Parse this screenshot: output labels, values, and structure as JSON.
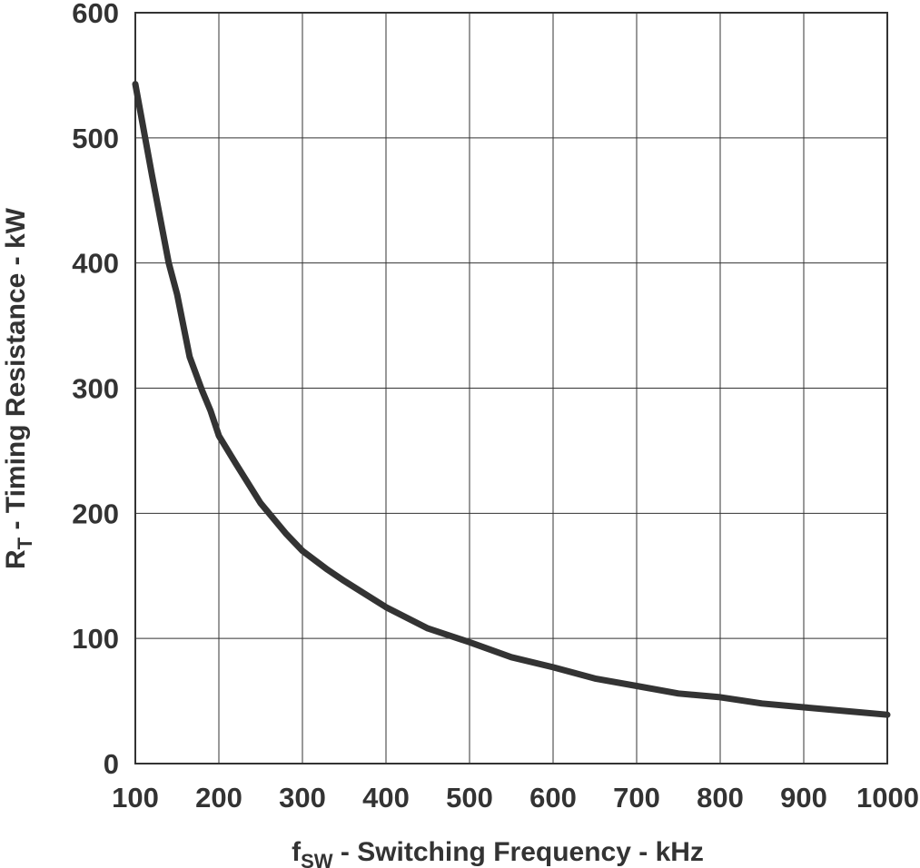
{
  "chart_data": {
    "type": "line",
    "xlabel": {
      "main": "f",
      "sub": "SW",
      "rest": " - Switching Frequency - kHz"
    },
    "ylabel": {
      "main": "R",
      "sub": "T",
      "rest": " - Timing Resistance - kW"
    },
    "xlim": [
      100,
      1000
    ],
    "ylim": [
      0,
      600
    ],
    "xticks": [
      "100",
      "200",
      "300",
      "400",
      "500",
      "600",
      "700",
      "800",
      "900",
      "1000"
    ],
    "yticks": [
      "0",
      "100",
      "200",
      "300",
      "400",
      "500",
      "600"
    ],
    "grid": true,
    "colors": {
      "line": "#333333",
      "grid": "#333333",
      "text": "#333333"
    },
    "series": [
      {
        "x": [
          100,
          120,
          140,
          150,
          165,
          180,
          190,
          200,
          220,
          250,
          280,
          300,
          330,
          350,
          400,
          450,
          500,
          550,
          600,
          650,
          700,
          750,
          800,
          850,
          900,
          950,
          1000
        ],
        "y": [
          543,
          470,
          400,
          375,
          325,
          298,
          282,
          262,
          240,
          208,
          184,
          170,
          155,
          146,
          125,
          108,
          97,
          85,
          77,
          68,
          62,
          56,
          53,
          48,
          45,
          42,
          39
        ]
      }
    ]
  }
}
